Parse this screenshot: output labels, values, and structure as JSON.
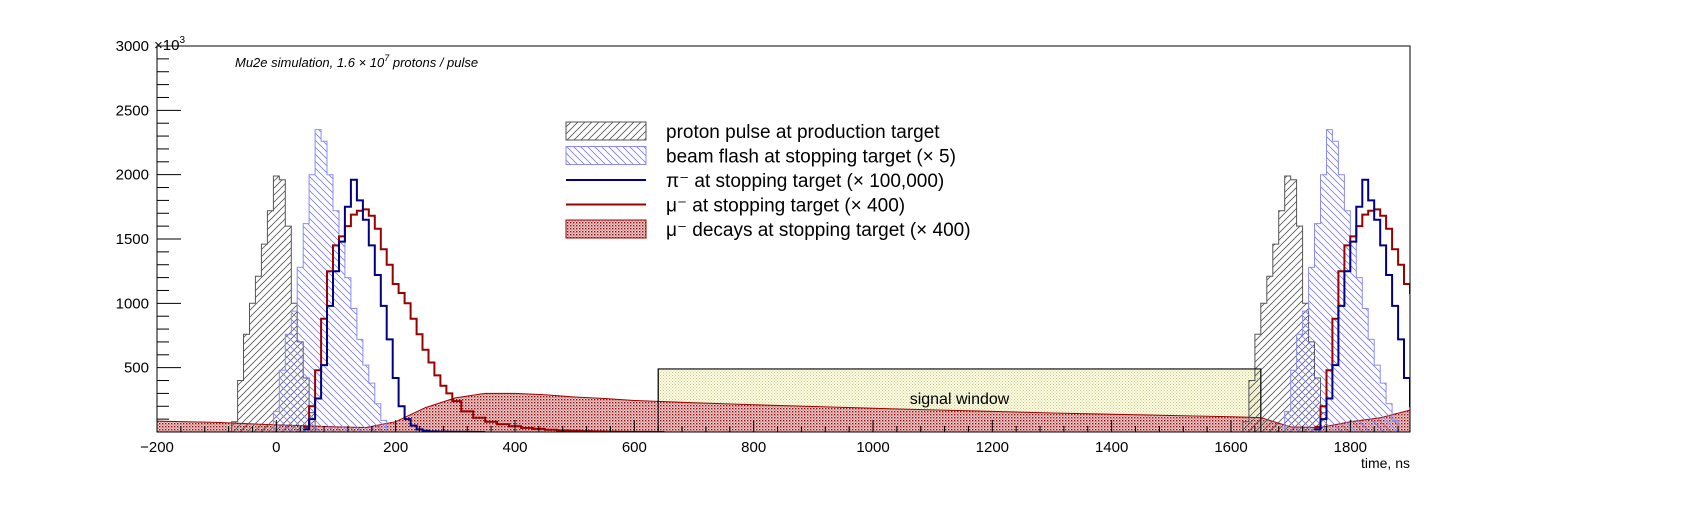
{
  "chart_data": {
    "type": "area",
    "title": "",
    "annotation": {
      "text": "Mu2e simulation, 1.6 × 10",
      "superscript": "7",
      "suffix": " protons / pulse"
    },
    "xlabel": "time, ns",
    "ylabel": "",
    "ylabel_exponent_base": "×10",
    "ylabel_exponent": "3",
    "xlim": [
      -200,
      1900
    ],
    "ylim": [
      0,
      3000
    ],
    "x_ticks": [
      "−200",
      "0",
      "200",
      "400",
      "600",
      "800",
      "1000",
      "1200",
      "1400",
      "1600",
      "1800"
    ],
    "x_tick_values": [
      -200,
      0,
      200,
      400,
      600,
      800,
      1000,
      1200,
      1400,
      1600,
      1800
    ],
    "y_ticks": [
      "500",
      "1000",
      "1500",
      "2000",
      "2500",
      "3000"
    ],
    "y_tick_values": [
      500,
      1000,
      1500,
      2000,
      2500,
      3000
    ],
    "grid": false,
    "legend_position": "top-center",
    "signal_window": {
      "x0": 640,
      "x1": 1650,
      "y": 490,
      "label": "signal window"
    },
    "period_ns": 1695,
    "series": [
      {
        "name": "proton pulse at production target",
        "style": "hatch-grey",
        "color": "#555555",
        "x": [
          -70,
          -60,
          -50,
          -40,
          -30,
          -20,
          -10,
          0,
          10,
          20,
          30,
          40,
          50,
          60,
          70
        ],
        "values": [
          80,
          400,
          760,
          1000,
          1210,
          1460,
          1720,
          1990,
          1960,
          1600,
          1000,
          700,
          420,
          150,
          0
        ]
      },
      {
        "name": "beam flash at stopping target (× 5)",
        "style": "hatch-blue",
        "color": "#7c7cf0",
        "x": [
          0,
          10,
          20,
          30,
          40,
          50,
          60,
          70,
          80,
          90,
          100,
          110,
          120,
          130,
          140,
          150,
          160,
          170,
          180,
          190
        ],
        "values": [
          160,
          480,
          760,
          940,
          1280,
          1620,
          2000,
          2350,
          2260,
          2000,
          1720,
          1480,
          1200,
          960,
          720,
          520,
          380,
          220,
          90,
          0
        ]
      },
      {
        "name": "π⁻ at stopping target (× 100,000)",
        "style": "line",
        "color": "#000080",
        "x": [
          50,
          60,
          70,
          80,
          90,
          100,
          110,
          120,
          130,
          140,
          150,
          160,
          170,
          180,
          190,
          200,
          210,
          220,
          230,
          240,
          250,
          260,
          280,
          300,
          320,
          340
        ],
        "values": [
          20,
          100,
          260,
          520,
          980,
          1250,
          1480,
          1750,
          1960,
          1800,
          1650,
          1450,
          1220,
          980,
          720,
          420,
          200,
          100,
          50,
          20,
          10,
          5,
          3,
          2,
          1,
          0
        ]
      },
      {
        "name": "μ⁻ at stopping target (× 400)",
        "style": "line",
        "color": "#990000",
        "x": [
          50,
          60,
          70,
          80,
          90,
          100,
          110,
          120,
          130,
          140,
          150,
          160,
          170,
          180,
          190,
          200,
          210,
          220,
          230,
          240,
          250,
          260,
          270,
          280,
          290,
          300,
          320,
          340,
          360,
          380,
          400,
          420,
          440,
          460,
          480,
          500,
          520,
          540,
          560,
          580,
          600,
          620,
          640
        ],
        "values": [
          40,
          200,
          480,
          880,
          1250,
          1450,
          1520,
          1600,
          1690,
          1720,
          1730,
          1680,
          1580,
          1420,
          1300,
          1150,
          1080,
          1000,
          880,
          760,
          640,
          540,
          440,
          360,
          300,
          240,
          160,
          110,
          80,
          60,
          45,
          32,
          24,
          18,
          12,
          9,
          7,
          5,
          3,
          2,
          1,
          1,
          0
        ]
      },
      {
        "name": "μ⁻ decays at stopping target (× 400)",
        "style": "fill-red",
        "color": "#a00000",
        "x": [
          -200,
          -100,
          0,
          50,
          100,
          150,
          200,
          250,
          300,
          350,
          400,
          450,
          500,
          550,
          600,
          650,
          700,
          800,
          900,
          1000,
          1100,
          1200,
          1300,
          1400,
          1500,
          1600,
          1650,
          1700,
          1750,
          1800,
          1850,
          1900
        ],
        "values": [
          85,
          75,
          55,
          48,
          40,
          35,
          80,
          190,
          265,
          300,
          300,
          290,
          272,
          260,
          245,
          236,
          228,
          212,
          198,
          184,
          172,
          160,
          148,
          138,
          128,
          118,
          112,
          40,
          35,
          80,
          110,
          170
        ]
      }
    ]
  }
}
